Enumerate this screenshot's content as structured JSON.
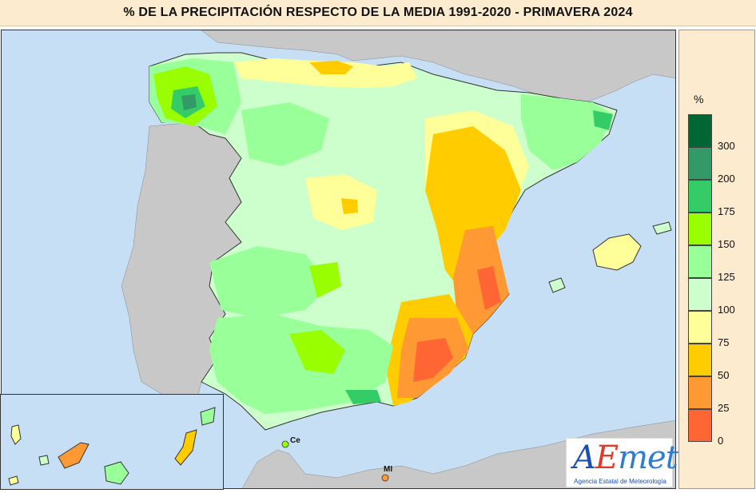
{
  "title": "% DE LA PRECIPITACIÓN RESPECTO DE LA MEDIA 1991-2020 - PRIMAVERA 2024",
  "legend": {
    "unit": "%",
    "classes": [
      {
        "label": "300",
        "color": "#006633"
      },
      {
        "label": "200",
        "color": "#339966"
      },
      {
        "label": "175",
        "color": "#33cc66"
      },
      {
        "label": "150",
        "color": "#99ff00"
      },
      {
        "label": "125",
        "color": "#99ff99"
      },
      {
        "label": "100",
        "color": "#ccffcc"
      },
      {
        "label": "75",
        "color": "#ffff99"
      },
      {
        "label": "50",
        "color": "#ffcc00"
      },
      {
        "label": "25",
        "color": "#ff9933"
      },
      {
        "label": "0",
        "color": "#ff6633"
      }
    ]
  },
  "map": {
    "background_sea": "#c6dff5",
    "land_outside": "#c8c8c8",
    "city_labels": {
      "ceuta": "Ce",
      "melilla": "MI"
    }
  },
  "logo": {
    "part_a": "A",
    "part_e": "E",
    "part_met": "met",
    "subtitle": "Agencia Estatal de Meteorología"
  }
}
